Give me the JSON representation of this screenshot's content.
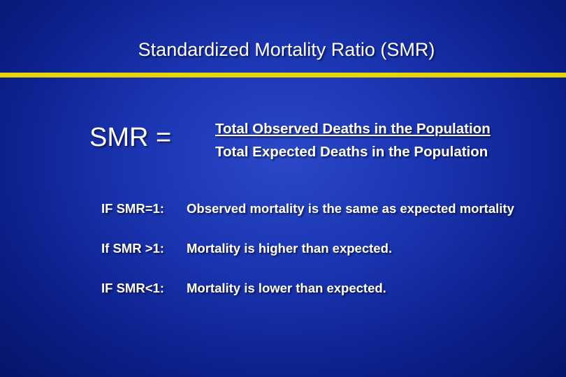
{
  "slide": {
    "title": "Standardized Mortality Ratio (SMR)",
    "accent_color": "#e8d400",
    "background_color": "#1a34b0",
    "formula": {
      "lhs": "SMR =",
      "numerator": "Total Observed Deaths in the Population",
      "denominator": "Total Expected Deaths in the Population"
    },
    "interpretations": [
      {
        "condition": "IF SMR=1:",
        "meaning": "Observed mortality is the same as expected mortality"
      },
      {
        "condition": "If SMR >1:",
        "meaning": "Mortality is higher than expected."
      },
      {
        "condition": "IF SMR<1:",
        "meaning": "Mortality is lower than expected."
      }
    ]
  }
}
